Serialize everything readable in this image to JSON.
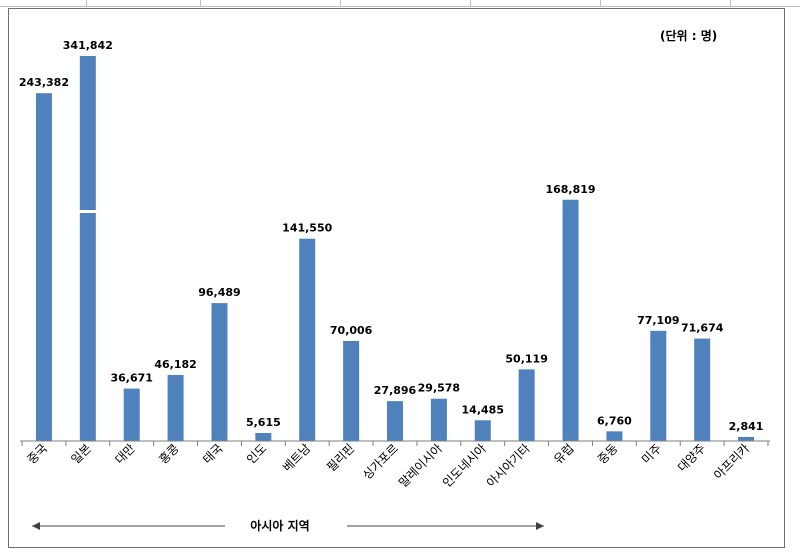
{
  "unit_label": "(단위 : 명)",
  "region_label": "아시아 지역",
  "chart_data": {
    "type": "bar",
    "title": "",
    "xlabel": "",
    "ylabel": "",
    "categories": [
      "중국",
      "일본",
      "대만",
      "홍콩",
      "태국",
      "인도",
      "베트남",
      "필리핀",
      "싱가포르",
      "말레이시아",
      "인도네시아",
      "아시아기타",
      "유럽",
      "중동",
      "미주",
      "대양주",
      "아프리카"
    ],
    "values": [
      243382,
      341842,
      36671,
      46182,
      96489,
      5615,
      141550,
      70006,
      27896,
      29578,
      14485,
      50119,
      168819,
      6760,
      77109,
      71674,
      2841
    ],
    "value_labels": [
      "243,382",
      "341,842",
      "36,671",
      "46,182",
      "96,489",
      "5,615",
      "141,550",
      "70,006",
      "27,896",
      "29,578",
      "14,485",
      "50,119",
      "168,819",
      "6,760",
      "77,109",
      "71,674",
      "2,841"
    ],
    "axis_break_category": "일본",
    "bar_color": "#4f81bd",
    "grid": false,
    "legend": "none"
  }
}
